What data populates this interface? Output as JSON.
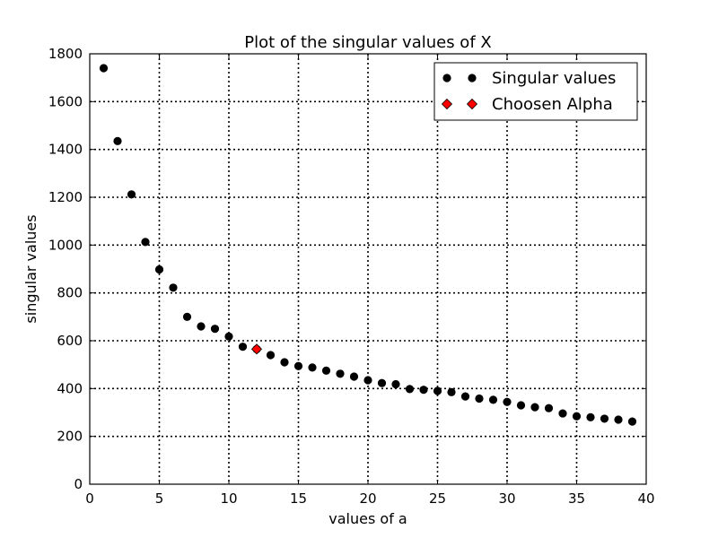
{
  "chart_data": {
    "type": "scatter",
    "title": "Plot of the singular values of X",
    "xlabel": "values of a",
    "ylabel": "singular values",
    "xlim": [
      0,
      40
    ],
    "ylim": [
      0,
      1800
    ],
    "xticks": [
      0,
      5,
      10,
      15,
      20,
      25,
      30,
      35,
      40
    ],
    "yticks": [
      0,
      200,
      400,
      600,
      800,
      1000,
      1200,
      1400,
      1600,
      1800
    ],
    "grid": true,
    "legend_position": "top-right",
    "series": [
      {
        "name": "Singular values",
        "marker": "circle",
        "color": "#000000",
        "x": [
          1,
          2,
          3,
          4,
          5,
          6,
          7,
          8,
          9,
          10,
          11,
          12,
          13,
          14,
          15,
          16,
          17,
          18,
          19,
          20,
          21,
          22,
          23,
          24,
          25,
          26,
          27,
          28,
          29,
          30,
          31,
          32,
          33,
          34,
          35,
          36,
          37,
          38,
          39
        ],
        "y": [
          1740,
          1435,
          1212,
          1013,
          898,
          822,
          700,
          660,
          650,
          618,
          575,
          565,
          540,
          510,
          494,
          488,
          475,
          462,
          450,
          435,
          423,
          418,
          398,
          395,
          390,
          385,
          367,
          358,
          353,
          344,
          330,
          322,
          318,
          296,
          284,
          280,
          274,
          270,
          262
        ]
      },
      {
        "name": "Choosen Alpha",
        "marker": "diamond",
        "color": "#ff0000",
        "x": [
          12
        ],
        "y": [
          565
        ]
      }
    ]
  }
}
